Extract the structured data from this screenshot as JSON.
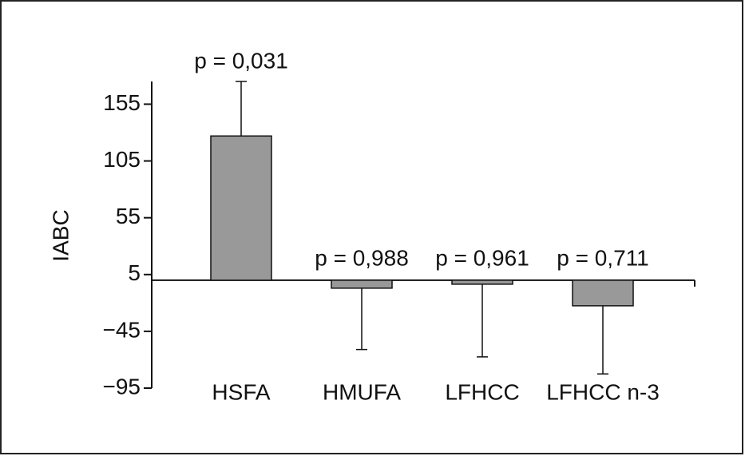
{
  "chart_data": {
    "type": "bar",
    "y_label": "IABC",
    "categories": [
      "HSFA",
      "HMUFA",
      "LFHCC",
      "LFHCC n-3"
    ],
    "values": [
      127,
      -7,
      -3.5,
      -22.5
    ],
    "errors": [
      48,
      54,
      64,
      60
    ],
    "annotations": [
      "p = 0,031",
      "p = 0,988",
      "p = 0,961",
      "p = 0,711"
    ],
    "color": "#999999",
    "ylim": [
      -95,
      175
    ],
    "yticks": [
      {
        "value": -95,
        "label": "−95"
      },
      {
        "value": -45,
        "label": "−45"
      },
      5,
      55,
      105,
      155
    ]
  }
}
